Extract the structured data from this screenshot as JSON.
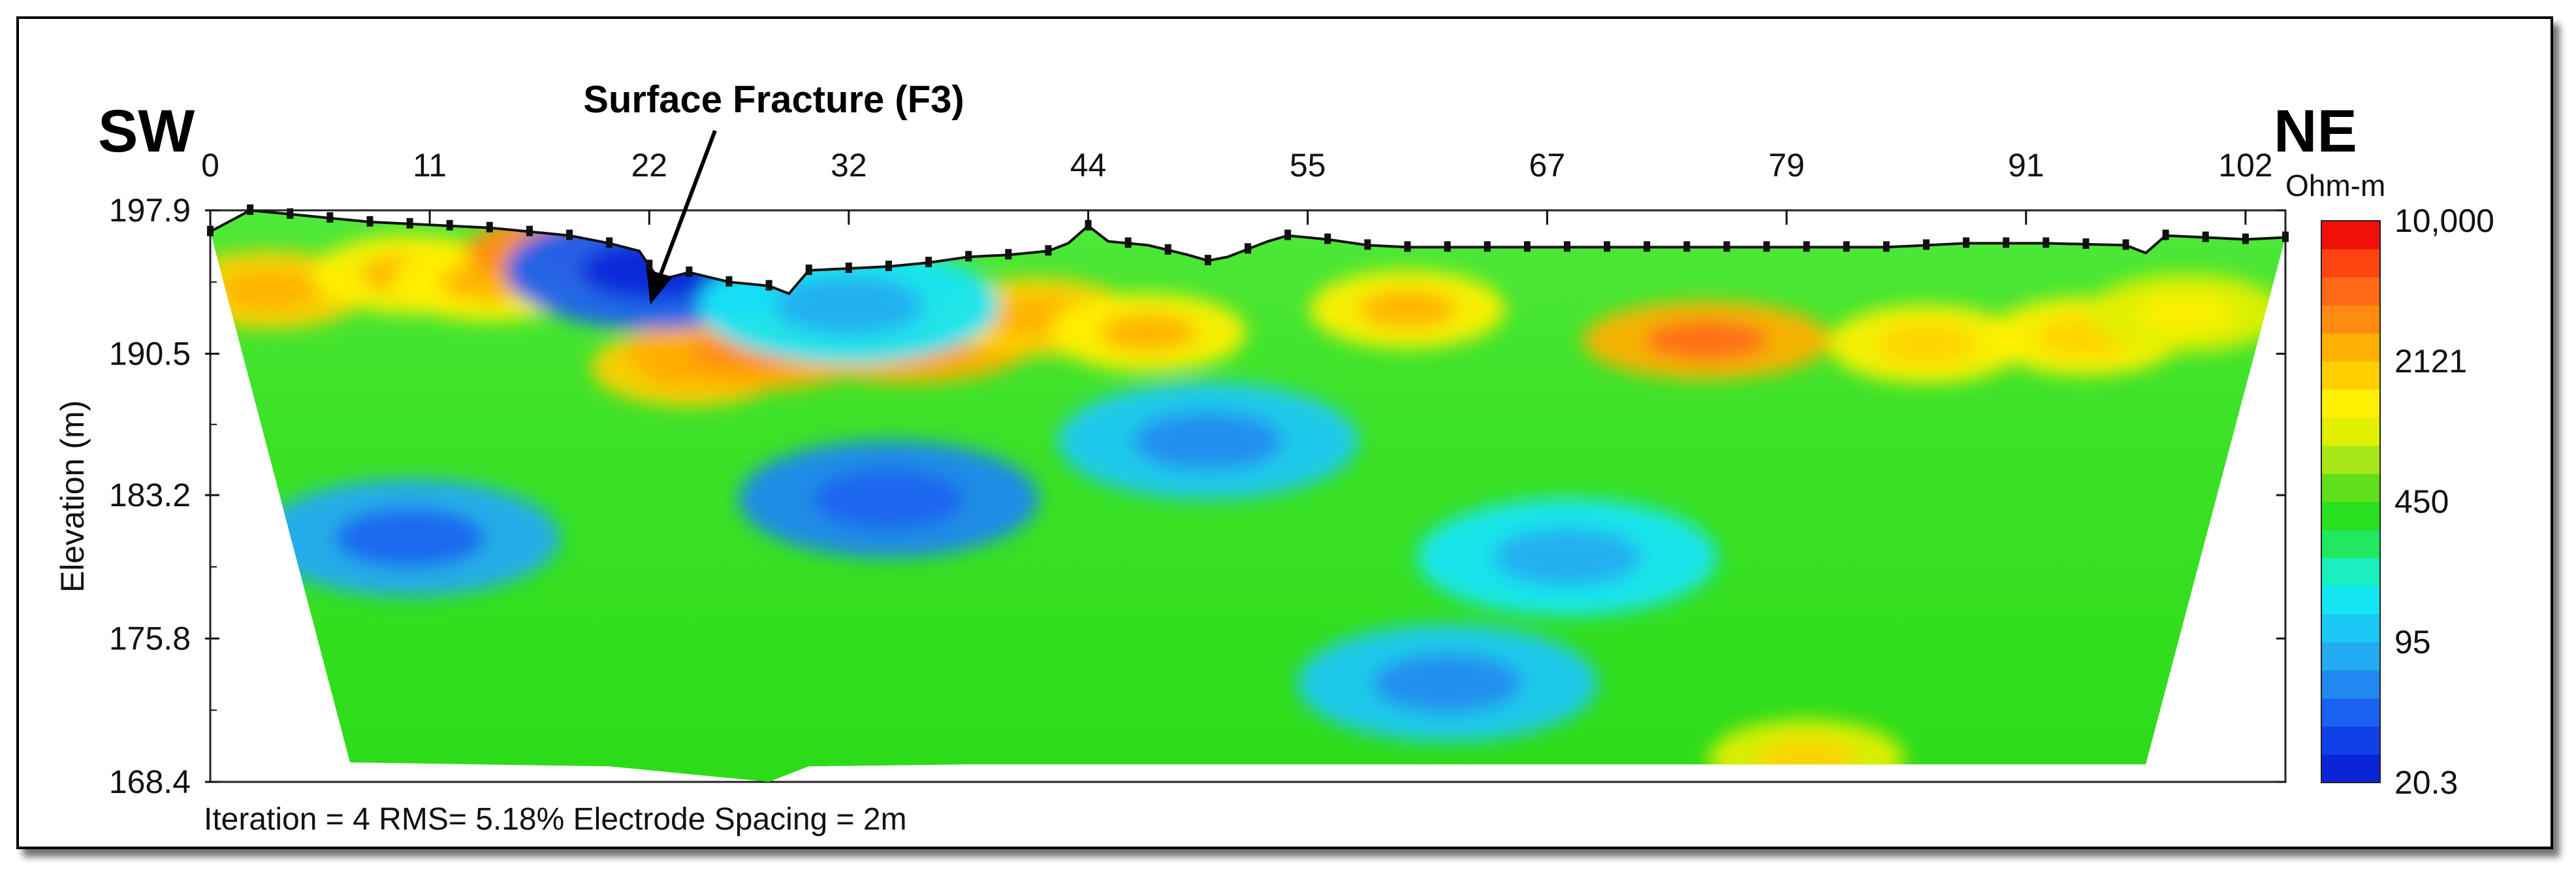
{
  "chart_data": {
    "type": "heatmap",
    "annotation": "Surface Fracture (F3)",
    "left_direction": "SW",
    "right_direction": "NE",
    "ylabel": "Elevation (m)",
    "x_ticks": [
      0,
      11,
      22,
      32,
      44,
      55,
      67,
      79,
      91,
      102
    ],
    "xlim": [
      0,
      104
    ],
    "y_ticks": [
      197.9,
      190.5,
      183.2,
      175.8,
      168.4
    ],
    "ylim": [
      168.4,
      197.9
    ],
    "colorbar": {
      "unit": "Ohm-m",
      "labels": [
        "10,000",
        "2121",
        "450",
        "95",
        "20.3"
      ],
      "scale": "log",
      "range": [
        20.3,
        10000
      ],
      "colors": [
        "#0a24d8",
        "#1040e8",
        "#1a62f0",
        "#2088f0",
        "#22aaf2",
        "#1cc8f5",
        "#14e6f5",
        "#18f0c0",
        "#20e860",
        "#28e020",
        "#60e01a",
        "#a8e81a",
        "#e0f000",
        "#fff000",
        "#ffd000",
        "#ffb000",
        "#ff8c10",
        "#ff6818",
        "#ff4410",
        "#f01008"
      ]
    },
    "surface_profile": {
      "x": [
        0,
        2,
        4,
        6,
        8,
        10,
        12,
        14,
        16,
        18,
        20,
        21.5,
        22.5,
        24,
        26,
        28,
        29,
        30,
        32,
        34,
        36,
        38,
        40,
        42,
        43,
        44,
        45,
        47,
        49,
        50,
        51,
        52,
        53,
        54,
        56,
        58,
        60,
        64,
        68,
        72,
        76,
        80,
        84,
        88,
        92,
        96,
        97,
        98,
        100,
        102,
        104
      ],
      "y": [
        196.8,
        197.9,
        197.7,
        197.5,
        197.3,
        197.2,
        197.1,
        197.0,
        196.8,
        196.6,
        196.2,
        195.8,
        194.3,
        194.7,
        194.2,
        194.0,
        193.6,
        194.8,
        194.9,
        195.0,
        195.2,
        195.5,
        195.6,
        195.8,
        196.2,
        197.1,
        196.3,
        196.1,
        195.6,
        195.3,
        195.5,
        195.9,
        196.3,
        196.6,
        196.4,
        196.1,
        196.0,
        196.0,
        196.0,
        196.0,
        196.0,
        196.0,
        196.0,
        196.2,
        196.2,
        196.1,
        195.7,
        196.6,
        196.5,
        196.4,
        196.5
      ]
    },
    "section_bottom": {
      "x": [
        0,
        7,
        20,
        28,
        30,
        38,
        97,
        104
      ],
      "y": [
        196.8,
        169.4,
        169.2,
        168.4,
        169.2,
        169.3,
        169.3,
        196.5
      ]
    },
    "resistivity_anomalies": [
      {
        "x": 3,
        "y": 193.8,
        "value": 1800
      },
      {
        "x": 10,
        "y": 194.6,
        "value": 1500
      },
      {
        "x": 14,
        "y": 194.2,
        "value": 1400
      },
      {
        "x": 19,
        "y": 195.8,
        "value": 3500
      },
      {
        "x": 24,
        "y": 189.8,
        "value": 1900
      },
      {
        "x": 27,
        "y": 190.6,
        "value": 2400
      },
      {
        "x": 35,
        "y": 191.0,
        "value": 2200
      },
      {
        "x": 41.5,
        "y": 192.4,
        "value": 1700
      },
      {
        "x": 47,
        "y": 191.6,
        "value": 1400
      },
      {
        "x": 60,
        "y": 192.8,
        "value": 1500
      },
      {
        "x": 75,
        "y": 191.2,
        "value": 2600
      },
      {
        "x": 86,
        "y": 191.0,
        "value": 1300
      },
      {
        "x": 94,
        "y": 191.4,
        "value": 1200
      },
      {
        "x": 99,
        "y": 192.6,
        "value": 900
      },
      {
        "x": 80,
        "y": 169.6,
        "value": 1000
      },
      {
        "x": 10,
        "y": 181.0,
        "value": 90
      },
      {
        "x": 34,
        "y": 183.0,
        "value": 70
      },
      {
        "x": 50,
        "y": 186.0,
        "value": 110
      },
      {
        "x": 68,
        "y": 180.0,
        "value": 170
      },
      {
        "x": 62,
        "y": 173.5,
        "value": 120
      },
      {
        "x": 22.3,
        "y": 194.8,
        "value": 40
      },
      {
        "x": 32,
        "y": 193.0,
        "value": 150
      }
    ],
    "footer": "Iteration = 4 RMS= 5.18% Electrode Spacing = 2m"
  }
}
